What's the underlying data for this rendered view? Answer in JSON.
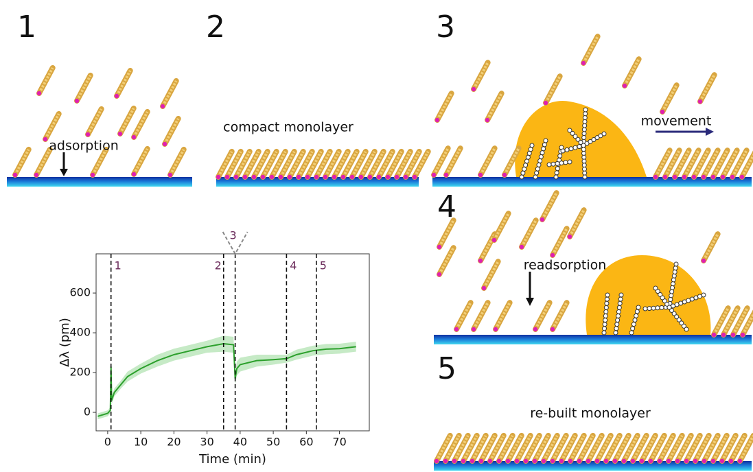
{
  "panels": [
    {
      "label": "1",
      "caption": "adsorption"
    },
    {
      "label": "2",
      "caption": "compact monolayer"
    },
    {
      "label": "3",
      "caption": "movement"
    },
    {
      "label": "4",
      "caption": "readsorption"
    },
    {
      "label": "5",
      "caption": "re-built monolayer"
    }
  ],
  "chart_data": {
    "type": "line",
    "x_label": "Time (min)",
    "y_label": "Δλ (pm)",
    "xlim": [
      -3.5,
      79
    ],
    "ylim": [
      -93,
      797
    ],
    "xticks": [
      0,
      10,
      20,
      30,
      40,
      50,
      60,
      70
    ],
    "yticks": [
      0,
      200,
      400,
      600
    ],
    "x": [
      -3,
      0,
      0.8,
      1,
      1.2,
      2,
      4,
      6,
      10,
      15,
      20,
      25,
      30,
      35,
      38,
      38.5,
      39,
      40,
      45,
      50,
      54,
      57,
      62,
      66,
      70,
      75
    ],
    "series": [
      {
        "color": "#2ca02c",
        "values": [
          -20,
          -5,
          10,
          230,
          60,
          100,
          140,
          180,
          220,
          260,
          290,
          310,
          330,
          345,
          340,
          170,
          220,
          240,
          260,
          265,
          270,
          290,
          310,
          318,
          320,
          330
        ]
      }
    ],
    "band": {
      "color": "#98d898",
      "lower": [
        -35,
        -20,
        -5,
        200,
        40,
        80,
        120,
        155,
        195,
        230,
        260,
        280,
        300,
        305,
        300,
        140,
        185,
        205,
        230,
        240,
        250,
        265,
        285,
        292,
        295,
        305
      ],
      "upper": [
        -5,
        10,
        25,
        260,
        80,
        120,
        160,
        205,
        245,
        290,
        320,
        340,
        360,
        385,
        380,
        200,
        255,
        275,
        290,
        290,
        290,
        315,
        335,
        344,
        345,
        355
      ]
    },
    "markers": [
      {
        "x": 1,
        "label": "1"
      },
      {
        "x": 35,
        "label": "2"
      },
      {
        "x": 38.5,
        "label": "3"
      },
      {
        "x": 54,
        "label": "4"
      },
      {
        "x": 63,
        "label": "5"
      }
    ]
  }
}
